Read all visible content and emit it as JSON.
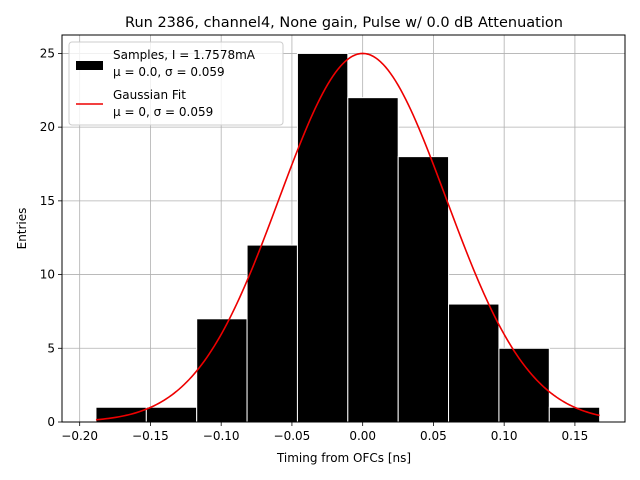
{
  "chart_data": {
    "type": "bar",
    "title": "Run 2386, channel4, None gain, Pulse w/ 0.0 dB Attenuation",
    "xlabel": "Timing from OFCs [ns]",
    "ylabel": "Entries",
    "xlim": [
      -0.2125,
      0.1854
    ],
    "ylim": [
      0,
      26.25
    ],
    "x_ticks": [
      -0.2,
      -0.15,
      -0.1,
      -0.05,
      0.0,
      0.05,
      0.1,
      0.15
    ],
    "x_tick_labels": [
      "−0.20",
      "−0.15",
      "−0.10",
      "−0.05",
      "0.00",
      "0.05",
      "0.10",
      "0.15"
    ],
    "y_ticks": [
      0,
      5,
      10,
      15,
      20,
      25
    ],
    "y_tick_labels": [
      "0",
      "5",
      "10",
      "15",
      "20",
      "25"
    ],
    "grid": true,
    "legend_position": "upper-left",
    "histogram": {
      "name_line1": "Samples, I = 1.7578mA",
      "name_line2": "μ = 0.0, σ = 0.059",
      "color": "#000000",
      "edge_color": "#ffffff",
      "bin_edges": [
        -0.1885,
        -0.1529,
        -0.1173,
        -0.0817,
        -0.0461,
        -0.0105,
        0.0251,
        0.0607,
        0.0963,
        0.1319,
        0.1675
      ],
      "counts": [
        1,
        1,
        7,
        12,
        25,
        22,
        18,
        8,
        5,
        1
      ]
    },
    "fit": {
      "name_line1": "Gaussian Fit",
      "name_line2": "μ = 0, σ = 0.059",
      "color": "#ee0000",
      "mu": 0.0,
      "sigma": 0.059,
      "amplitude": 25.0,
      "x_range": [
        -0.1885,
        0.1675
      ]
    }
  }
}
